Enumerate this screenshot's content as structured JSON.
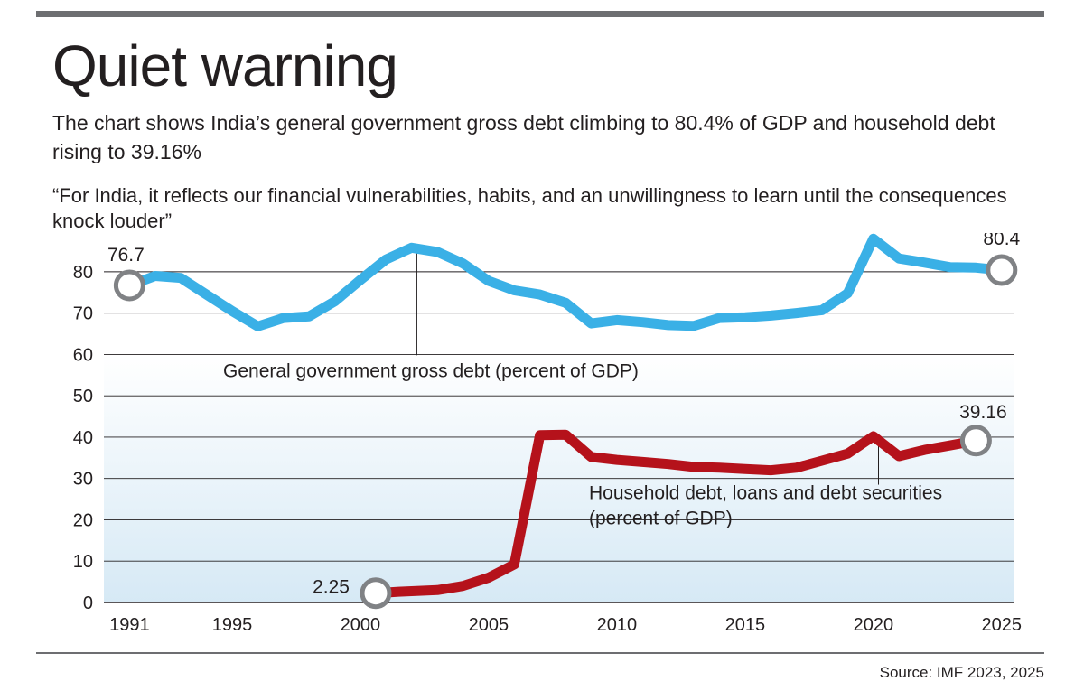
{
  "header": {
    "title": "Quiet warning",
    "subtitle": "The chart shows India’s general government gross debt climbing to 80.4% of GDP and household debt rising to 39.16%",
    "quote": "“For India, it reflects our financial vulnerabilities, habits, and an unwillingness to learn until the consequences knock louder”"
  },
  "footer": {
    "source": "Source: IMF 2023, 2025"
  },
  "colors": {
    "government": "#3ab0e6",
    "household": "#b5121b",
    "grid": "#231f20",
    "marker": "#808285",
    "band_top": "#ffffff",
    "band_bottom": "#d6e9f5"
  },
  "chart_data": {
    "type": "line",
    "title": "Quiet warning",
    "xlabel": "",
    "ylabel": "",
    "xlim": [
      1990,
      2025.5
    ],
    "ylim": [
      0,
      85
    ],
    "x_ticks": [
      1991,
      1995,
      2000,
      2005,
      2010,
      2015,
      2020,
      2025
    ],
    "y_ticks": [
      0,
      10,
      20,
      30,
      40,
      50,
      60,
      70,
      80
    ],
    "grid": true,
    "series": [
      {
        "name": "General government gross debt (percent of GDP)",
        "label_lines": [
          "General government gross debt (percent of GDP)"
        ],
        "label_year": 2002.2,
        "leader_value": 59.8,
        "color_key": "government",
        "x": [
          1991,
          1992,
          1993,
          1994,
          1995,
          1996,
          1997,
          1998,
          1999,
          2000,
          2001,
          2002,
          2003,
          2004,
          2005,
          2006,
          2007,
          2008,
          2009,
          2010,
          2011,
          2012,
          2013,
          2014,
          2015,
          2016,
          2017,
          2018,
          2019,
          2020,
          2021,
          2022,
          2023,
          2024,
          2025
        ],
        "values": [
          76.7,
          79.0,
          78.5,
          74.5,
          70.5,
          66.8,
          68.8,
          69.2,
          72.8,
          78.0,
          83.0,
          85.8,
          84.8,
          82.0,
          77.8,
          75.5,
          74.5,
          72.5,
          67.5,
          68.3,
          67.8,
          67.1,
          66.9,
          68.8,
          69.0,
          69.4,
          70.0,
          70.7,
          74.8,
          88.0,
          83.2,
          82.2,
          81.1,
          81.0,
          80.4
        ],
        "start_label": "76.7",
        "end_label": "80.4"
      },
      {
        "name": "Household debt, loans and debt securities (percent of GDP)",
        "label_lines": [
          "Household debt, loans and debt securities",
          "(percent of GDP)"
        ],
        "label_year": 2020.2,
        "leader_value": 28.5,
        "color_key": "household",
        "x": [
          2000.6,
          2001.5,
          2003,
          2004,
          2005,
          2006,
          2007,
          2008,
          2009,
          2010,
          2011,
          2012,
          2013,
          2014,
          2015,
          2016,
          2017,
          2018,
          2019,
          2020,
          2021,
          2022,
          2023,
          2024
        ],
        "values": [
          2.25,
          2.6,
          3.0,
          4.0,
          6.0,
          9.2,
          40.5,
          40.6,
          35.2,
          34.5,
          34.0,
          33.5,
          32.8,
          32.6,
          32.3,
          32.0,
          32.6,
          34.3,
          36.0,
          40.2,
          35.4,
          36.9,
          38.0,
          39.16
        ],
        "start_label": "2.25",
        "end_label": "39.16"
      }
    ]
  }
}
